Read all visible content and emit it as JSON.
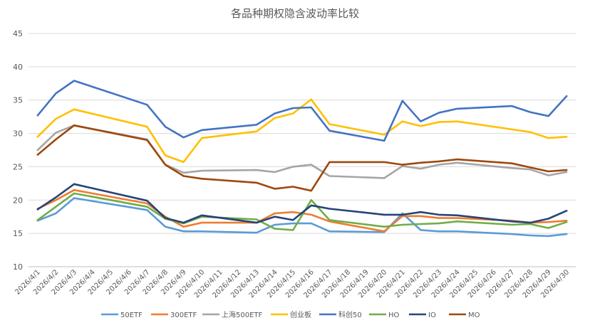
{
  "chart_data": {
    "type": "line",
    "title": "各品种期权隐含波动率比较",
    "xlabel": "",
    "ylabel": "",
    "ylim": [
      10,
      45
    ],
    "yticks": [
      10,
      15,
      20,
      25,
      30,
      35,
      40,
      45
    ],
    "grid": true,
    "legend_position": "bottom",
    "x": [
      "2026/4/1",
      "2026/4/2",
      "2026/4/3",
      "2026/4/4",
      "2026/4/5",
      "2026/4/6",
      "2026/4/7",
      "2026/4/8",
      "2026/4/9",
      "2026/4/10",
      "2026/4/11",
      "2026/4/12",
      "2026/4/13",
      "2026/4/14",
      "2026/4/15",
      "2026/4/16",
      "2026/4/17",
      "2026/4/18",
      "2026/4/19",
      "2026/4/20",
      "2026/4/21",
      "2026/4/22",
      "2026/4/23",
      "2026/4/24",
      "2026/4/25",
      "2026/4/26",
      "2026/4/27",
      "2026/4/28",
      "2026/4/29",
      "2026/4/30"
    ],
    "series": [
      {
        "name": "50ETF",
        "color": "#5b9bd5",
        "points": [
          [
            0,
            16.9
          ],
          [
            1,
            18.0
          ],
          [
            2,
            20.3
          ],
          [
            6,
            18.5
          ],
          [
            7,
            16.0
          ],
          [
            8,
            15.3
          ],
          [
            9,
            15.3
          ],
          [
            12,
            15.1
          ],
          [
            13,
            16.3
          ],
          [
            14,
            16.5
          ],
          [
            15,
            16.5
          ],
          [
            16,
            15.3
          ],
          [
            19,
            15.2
          ],
          [
            20,
            18.0
          ],
          [
            21,
            15.5
          ],
          [
            22,
            15.3
          ],
          [
            23,
            15.3
          ],
          [
            26,
            14.9
          ],
          [
            27,
            14.7
          ],
          [
            28,
            14.6
          ],
          [
            29,
            14.9
          ]
        ]
      },
      {
        "name": "300ETF",
        "color": "#ed7d31",
        "points": [
          [
            0,
            18.7
          ],
          [
            1,
            20.0
          ],
          [
            2,
            21.5
          ],
          [
            6,
            19.5
          ],
          [
            7,
            17.5
          ],
          [
            8,
            16.0
          ],
          [
            9,
            16.6
          ],
          [
            12,
            16.6
          ],
          [
            13,
            18.0
          ],
          [
            14,
            18.2
          ],
          [
            15,
            17.8
          ],
          [
            16,
            16.8
          ],
          [
            19,
            15.3
          ],
          [
            20,
            17.6
          ],
          [
            21,
            17.6
          ],
          [
            22,
            17.3
          ],
          [
            23,
            17.3
          ],
          [
            26,
            16.9
          ],
          [
            27,
            16.6
          ],
          [
            28,
            16.7
          ],
          [
            29,
            16.9
          ]
        ]
      },
      {
        "name": "上海500ETF",
        "color": "#a5a5a5",
        "points": [
          [
            0,
            27.5
          ],
          [
            1,
            30.1
          ],
          [
            2,
            31.2
          ],
          [
            6,
            29.1
          ],
          [
            7,
            25.3
          ],
          [
            8,
            24.1
          ],
          [
            9,
            24.4
          ],
          [
            12,
            24.5
          ],
          [
            13,
            24.2
          ],
          [
            14,
            25.0
          ],
          [
            15,
            25.3
          ],
          [
            16,
            23.6
          ],
          [
            19,
            23.3
          ],
          [
            20,
            25.1
          ],
          [
            21,
            24.7
          ],
          [
            22,
            25.3
          ],
          [
            23,
            25.6
          ],
          [
            26,
            24.8
          ],
          [
            27,
            24.6
          ],
          [
            28,
            23.7
          ],
          [
            29,
            24.2
          ]
        ]
      },
      {
        "name": "创业板",
        "color": "#ffc000",
        "points": [
          [
            0,
            29.5
          ],
          [
            1,
            32.2
          ],
          [
            2,
            33.6
          ],
          [
            6,
            31.0
          ],
          [
            7,
            26.7
          ],
          [
            8,
            25.7
          ],
          [
            9,
            29.3
          ],
          [
            12,
            30.3
          ],
          [
            13,
            32.3
          ],
          [
            14,
            33.0
          ],
          [
            15,
            35.1
          ],
          [
            16,
            31.4
          ],
          [
            19,
            29.8
          ],
          [
            20,
            31.8
          ],
          [
            21,
            31.1
          ],
          [
            22,
            31.7
          ],
          [
            23,
            31.8
          ],
          [
            26,
            30.6
          ],
          [
            27,
            30.2
          ],
          [
            28,
            29.3
          ],
          [
            29,
            29.5
          ]
        ]
      },
      {
        "name": "科创50",
        "color": "#4472c4",
        "points": [
          [
            0,
            32.7
          ],
          [
            1,
            36.0
          ],
          [
            2,
            37.9
          ],
          [
            6,
            34.3
          ],
          [
            7,
            31.0
          ],
          [
            8,
            29.4
          ],
          [
            9,
            30.5
          ],
          [
            12,
            31.3
          ],
          [
            13,
            33.0
          ],
          [
            14,
            33.8
          ],
          [
            15,
            33.9
          ],
          [
            16,
            30.4
          ],
          [
            19,
            28.9
          ],
          [
            20,
            34.9
          ],
          [
            21,
            31.8
          ],
          [
            22,
            33.1
          ],
          [
            23,
            33.7
          ],
          [
            26,
            34.1
          ],
          [
            27,
            33.2
          ],
          [
            28,
            32.6
          ],
          [
            29,
            35.6
          ]
        ]
      },
      {
        "name": "HO",
        "color": "#70ad47",
        "points": [
          [
            0,
            17.0
          ],
          [
            1,
            19.0
          ],
          [
            2,
            21.0
          ],
          [
            6,
            19.0
          ],
          [
            7,
            17.2
          ],
          [
            8,
            16.5
          ],
          [
            9,
            17.5
          ],
          [
            12,
            17.1
          ],
          [
            13,
            15.7
          ],
          [
            14,
            15.5
          ],
          [
            15,
            20.0
          ],
          [
            16,
            17.0
          ],
          [
            19,
            16.0
          ],
          [
            20,
            16.3
          ],
          [
            21,
            16.4
          ],
          [
            22,
            16.5
          ],
          [
            23,
            16.8
          ],
          [
            26,
            16.3
          ],
          [
            27,
            16.4
          ],
          [
            28,
            15.8
          ],
          [
            29,
            16.7
          ]
        ]
      },
      {
        "name": "IO",
        "color": "#264478",
        "points": [
          [
            0,
            18.6
          ],
          [
            1,
            20.4
          ],
          [
            2,
            22.4
          ],
          [
            6,
            19.9
          ],
          [
            7,
            17.3
          ],
          [
            8,
            16.6
          ],
          [
            9,
            17.7
          ],
          [
            12,
            16.6
          ],
          [
            13,
            17.5
          ],
          [
            14,
            17.0
          ],
          [
            15,
            19.2
          ],
          [
            16,
            18.7
          ],
          [
            19,
            17.8
          ],
          [
            20,
            17.8
          ],
          [
            21,
            18.2
          ],
          [
            22,
            17.8
          ],
          [
            23,
            17.7
          ],
          [
            26,
            16.8
          ],
          [
            27,
            16.6
          ],
          [
            28,
            17.2
          ],
          [
            29,
            18.4
          ]
        ]
      },
      {
        "name": "MO",
        "color": "#9e480e",
        "points": [
          [
            0,
            26.8
          ],
          [
            1,
            29.1
          ],
          [
            2,
            31.2
          ],
          [
            6,
            29.0
          ],
          [
            7,
            25.3
          ],
          [
            8,
            23.6
          ],
          [
            9,
            23.2
          ],
          [
            12,
            22.6
          ],
          [
            13,
            21.7
          ],
          [
            14,
            22.0
          ],
          [
            15,
            21.4
          ],
          [
            16,
            25.7
          ],
          [
            19,
            25.7
          ],
          [
            20,
            25.3
          ],
          [
            21,
            25.6
          ],
          [
            22,
            25.8
          ],
          [
            23,
            26.1
          ],
          [
            26,
            25.5
          ],
          [
            27,
            24.9
          ],
          [
            28,
            24.3
          ],
          [
            29,
            24.5
          ]
        ]
      }
    ]
  }
}
